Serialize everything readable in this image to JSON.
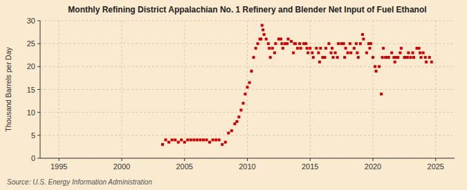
{
  "chart_data": {
    "type": "scatter",
    "title": "Monthly Refining District Appalachian No. 1 Refinery and Blender Net Input of Fuel Ethanol",
    "ylabel": "Thousand Barrels per Day",
    "annotations": [
      "Source: U.S. Energy Information Administration"
    ],
    "color": "#cc0000",
    "marker": "square",
    "grid": true,
    "xlim": [
      1993.5,
      2026.5
    ],
    "xticks": [
      1995,
      2000,
      2005,
      2010,
      2015,
      2020,
      2025
    ],
    "ylim": [
      0,
      30
    ],
    "yticks": [
      0,
      5,
      10,
      15,
      20,
      25,
      30
    ],
    "x": [
      2003.25,
      2003.5,
      2003.75,
      2004.0,
      2004.25,
      2004.5,
      2004.75,
      2005.0,
      2005.25,
      2005.5,
      2005.75,
      2006.0,
      2006.25,
      2006.5,
      2006.75,
      2007.0,
      2007.25,
      2007.5,
      2007.75,
      2008.0,
      2008.25,
      2008.5,
      2008.75,
      2009.0,
      2009.17,
      2009.33,
      2009.5,
      2009.67,
      2009.83,
      2010.0,
      2010.17,
      2010.33,
      2010.5,
      2010.67,
      2010.83,
      2011.0,
      2011.08,
      2011.17,
      2011.25,
      2011.33,
      2011.5,
      2011.67,
      2011.75,
      2011.83,
      2012.0,
      2012.17,
      2012.25,
      2012.5,
      2012.67,
      2012.75,
      2012.83,
      2013.0,
      2013.17,
      2013.25,
      2013.5,
      2013.67,
      2013.75,
      2013.83,
      2014.0,
      2014.17,
      2014.25,
      2014.5,
      2014.67,
      2014.75,
      2014.83,
      2015.0,
      2015.17,
      2015.25,
      2015.5,
      2015.67,
      2015.75,
      2015.83,
      2016.0,
      2016.17,
      2016.25,
      2016.5,
      2016.67,
      2016.75,
      2016.83,
      2017.0,
      2017.17,
      2017.25,
      2017.5,
      2017.67,
      2017.75,
      2017.83,
      2018.0,
      2018.17,
      2018.25,
      2018.5,
      2018.67,
      2018.75,
      2018.83,
      2019.0,
      2019.17,
      2019.25,
      2019.5,
      2019.67,
      2019.75,
      2019.83,
      2020.0,
      2020.17,
      2020.25,
      2020.5,
      2020.67,
      2020.75,
      2020.83,
      2021.0,
      2021.17,
      2021.25,
      2021.5,
      2021.67,
      2021.75,
      2021.83,
      2022.0,
      2022.17,
      2022.25,
      2022.5,
      2022.67,
      2022.75,
      2022.83,
      2023.0,
      2023.17,
      2023.25,
      2023.5,
      2023.67,
      2023.75,
      2023.83,
      2024.0,
      2024.17,
      2024.25,
      2024.5,
      2024.67
    ],
    "values": [
      3.0,
      4.0,
      3.5,
      4.0,
      4.0,
      3.5,
      4.0,
      3.5,
      4.0,
      4.0,
      4.0,
      4.0,
      4.0,
      4.0,
      4.0,
      3.5,
      4.0,
      4.0,
      4.0,
      3.0,
      3.5,
      5.5,
      6.0,
      7.5,
      8.0,
      9.0,
      10.5,
      12.0,
      14.0,
      15.5,
      16.5,
      19.0,
      22.0,
      24.0,
      25.0,
      26.0,
      26.0,
      29.0,
      28.0,
      27.0,
      26.0,
      25.0,
      24.0,
      22.0,
      24.0,
      23.0,
      25.0,
      26.0,
      26.0,
      25.0,
      24.0,
      25.0,
      25.0,
      26.0,
      25.5,
      23.0,
      25.0,
      25.0,
      24.0,
      25.0,
      24.0,
      25.0,
      25.0,
      24.0,
      23.0,
      24.0,
      23.0,
      22.0,
      24.0,
      23.0,
      21.0,
      24.0,
      22.0,
      22.0,
      24.0,
      25.0,
      23.0,
      24.0,
      22.0,
      23.0,
      22.0,
      25.0,
      25.0,
      25.0,
      22.0,
      24.0,
      23.0,
      25.0,
      23.0,
      24.0,
      25.0,
      23.0,
      22.0,
      25.0,
      27.0,
      26.0,
      23.0,
      25.0,
      24.0,
      25.0,
      22.0,
      20.0,
      19.0,
      20.0,
      14.0,
      22.0,
      24.0,
      22.0,
      22.0,
      22.0,
      23.0,
      22.0,
      21.0,
      22.0,
      22.0,
      23.0,
      24.0,
      22.0,
      22.0,
      22.0,
      23.0,
      22.0,
      23.0,
      22.0,
      24.0,
      24.0,
      23.0,
      22.0,
      23.0,
      22.0,
      21.0,
      22.0,
      21.0
    ]
  }
}
